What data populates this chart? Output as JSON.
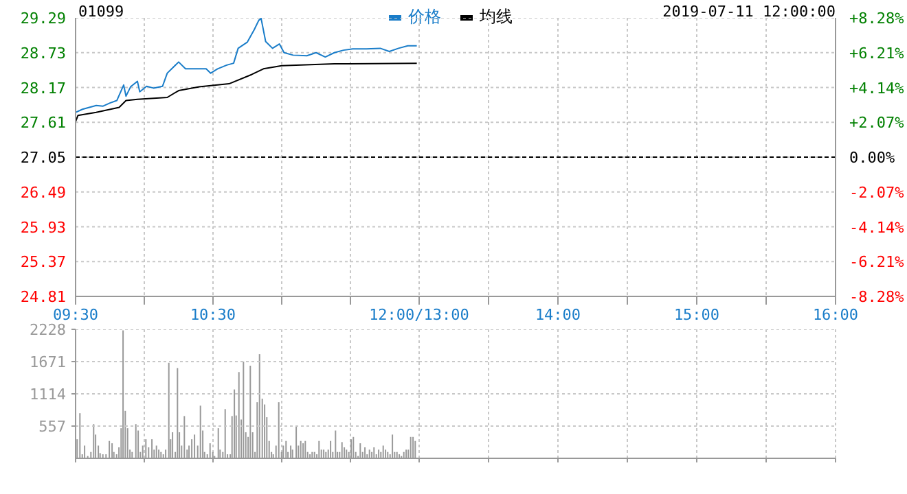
{
  "chart_data": [
    {
      "type": "line",
      "title": "01099",
      "annotations": [
        "2019-07-11 12:00:00"
      ],
      "series": [
        {
          "name": "价格",
          "color": "#1a7dc9",
          "x": [
            9.5,
            9.55,
            9.6,
            9.65,
            9.7,
            9.75,
            9.8,
            9.85,
            9.867,
            9.9,
            9.95,
            9.967,
            10.017,
            10.067,
            10.133,
            10.167,
            10.25,
            10.3,
            10.367,
            10.45,
            10.483,
            10.533,
            10.6,
            10.65,
            10.683,
            10.75,
            10.8,
            10.833,
            10.85,
            10.883,
            10.933,
            10.983,
            11.017,
            11.083,
            11.183,
            11.25,
            11.317,
            11.383,
            11.45,
            11.517,
            11.617,
            11.717,
            11.783,
            11.85,
            11.917,
            11.983
          ],
          "values": [
            27.77,
            27.82,
            27.85,
            27.88,
            27.87,
            27.92,
            27.96,
            28.21,
            28.03,
            28.18,
            28.27,
            28.1,
            28.19,
            28.16,
            28.19,
            28.4,
            28.58,
            28.47,
            28.47,
            28.47,
            28.4,
            28.47,
            28.53,
            28.56,
            28.8,
            28.9,
            29.1,
            29.25,
            29.28,
            28.91,
            28.8,
            28.87,
            28.73,
            28.69,
            28.68,
            28.73,
            28.66,
            28.73,
            28.77,
            28.79,
            28.79,
            28.8,
            28.75,
            28.8,
            28.84,
            28.84
          ]
        },
        {
          "name": "均线",
          "color": "#000000",
          "x": [
            9.5,
            9.517,
            9.65,
            9.817,
            9.867,
            9.95,
            10.167,
            10.25,
            10.4,
            10.617,
            10.783,
            10.867,
            11,
            11.383,
            11.983
          ],
          "values": [
            27.62,
            27.72,
            27.77,
            27.85,
            27.96,
            27.98,
            28.01,
            28.12,
            28.18,
            28.23,
            28.38,
            28.47,
            28.52,
            28.55,
            28.56
          ]
        }
      ],
      "xlim": [
        9.5,
        12
      ],
      "xticks": [
        {
          "value": 9.5,
          "label": "09:30"
        },
        {
          "value": 10,
          "label": null
        },
        {
          "value": 10.5,
          "label": "10:30"
        },
        {
          "value": 11,
          "label": null
        },
        {
          "value": 11.5,
          "label": null
        },
        {
          "value": 12,
          "label": "12:00/13:00"
        }
      ],
      "ylim": [
        24.81,
        29.29
      ],
      "yticks": [
        24.81,
        25.37,
        25.93,
        26.49,
        27.05,
        27.61,
        28.17,
        28.73,
        29.29
      ],
      "ref_lines": [
        {
          "axis": "y",
          "value": 27.05,
          "color": "#000000",
          "line_style": "dashed"
        }
      ],
      "grid": true,
      "legend": "top",
      "marker": "none",
      "line_style": "solid"
    },
    {
      "type": "line",
      "xlim": [
        13,
        16
      ],
      "xticks": [
        {
          "value": 13,
          "label": null
        },
        {
          "value": 13.5,
          "label": null
        },
        {
          "value": 14,
          "label": "14:00"
        },
        {
          "value": 14.5,
          "label": null
        },
        {
          "value": 15,
          "label": "15:00"
        },
        {
          "value": 15.5,
          "label": null
        },
        {
          "value": 16,
          "label": "16:00"
        }
      ],
      "ylim": [
        24.81,
        29.29
      ],
      "yticks": [
        24.81,
        25.37,
        25.93,
        26.49,
        27.05,
        27.61,
        28.17,
        28.73,
        29.29
      ],
      "y2lim": [
        -8.28,
        8.28
      ],
      "y2ticks": [
        {
          "value": -8.28,
          "label": "-8.28%"
        },
        {
          "value": -6.21,
          "label": "-6.21%"
        },
        {
          "value": -4.14,
          "label": "-4.14%"
        },
        {
          "value": -2.07,
          "label": "-2.07%"
        },
        {
          "value": 0,
          "label": "0.00%"
        },
        {
          "value": 2.07,
          "label": "+2.07%"
        },
        {
          "value": 4.14,
          "label": "+4.14%"
        },
        {
          "value": 6.21,
          "label": "+6.21%"
        },
        {
          "value": 8.28,
          "label": "+8.28%"
        }
      ],
      "ref_lines": [
        {
          "axis": "y",
          "value": 27.05,
          "color": "#000000",
          "line_style": "dashed"
        }
      ],
      "grid": true,
      "tick_labels": "x"
    },
    {
      "type": "bar",
      "color": "#999999",
      "x": [
        9.513,
        9.533,
        9.55,
        9.567,
        9.59,
        9.613,
        9.633,
        9.647,
        9.667,
        9.68,
        9.7,
        9.723,
        9.747,
        9.767,
        9.78,
        9.8,
        9.817,
        9.833,
        9.847,
        9.863,
        9.88,
        9.897,
        9.913,
        9.94,
        9.957,
        9.973,
        9.99,
        10.013,
        10.033,
        10.057,
        10.073,
        10.09,
        10.107,
        10.123,
        10.14,
        10.157,
        10.18,
        10.193,
        10.207,
        10.227,
        10.243,
        10.257,
        10.273,
        10.293,
        10.313,
        10.327,
        10.347,
        10.367,
        10.39,
        10.41,
        10.427,
        10.44,
        10.46,
        10.48,
        10.5,
        10.513,
        10.54,
        10.553,
        10.573,
        10.59,
        10.607,
        10.627,
        10.64,
        10.657,
        10.67,
        10.69,
        10.707,
        10.723,
        10.74,
        10.757,
        10.773,
        10.79,
        10.807,
        10.823,
        10.84,
        10.86,
        10.877,
        10.893,
        10.91,
        10.927,
        10.94,
        10.96,
        10.98,
        11,
        11.013,
        11.033,
        11.047,
        11.067,
        11.08,
        11.107,
        11.123,
        11.14,
        11.157,
        11.173,
        11.19,
        11.207,
        11.223,
        11.24,
        11.257,
        11.273,
        11.29,
        11.307,
        11.323,
        11.34,
        11.357,
        11.373,
        11.393,
        11.407,
        11.423,
        11.44,
        11.457,
        11.473,
        11.49,
        11.507,
        11.523,
        11.54,
        11.557,
        11.573,
        11.59,
        11.607,
        11.623,
        11.64,
        11.657,
        11.673,
        11.69,
        11.707,
        11.723,
        11.74,
        11.757,
        11.773,
        11.79,
        11.807,
        11.823,
        11.84,
        11.857,
        11.873,
        11.89,
        11.907,
        11.923,
        11.94,
        11.957,
        11.973
      ],
      "values": [
        330,
        780,
        70,
        220,
        40,
        110,
        590,
        410,
        220,
        90,
        70,
        70,
        300,
        260,
        110,
        70,
        190,
        520,
        2210,
        820,
        520,
        150,
        110,
        590,
        480,
        110,
        220,
        330,
        190,
        330,
        150,
        220,
        150,
        110,
        70,
        150,
        1650,
        330,
        450,
        110,
        1560,
        450,
        220,
        730,
        150,
        220,
        330,
        410,
        220,
        910,
        480,
        110,
        70,
        260,
        110,
        40,
        520,
        150,
        110,
        850,
        70,
        70,
        730,
        1190,
        740,
        1490,
        670,
        1670,
        450,
        370,
        1600,
        450,
        110,
        970,
        1800,
        1030,
        930,
        710,
        300,
        110,
        70,
        220,
        970,
        110,
        220,
        300,
        110,
        220,
        150,
        560,
        220,
        300,
        260,
        300,
        110,
        70,
        110,
        110,
        70,
        300,
        150,
        150,
        110,
        150,
        300,
        110,
        480,
        110,
        110,
        280,
        190,
        150,
        110,
        330,
        370,
        110,
        40,
        260,
        110,
        190,
        70,
        150,
        110,
        190,
        70,
        150,
        110,
        220,
        150,
        110,
        70,
        410,
        110,
        110,
        70,
        40,
        110,
        150,
        150,
        370,
        370,
        300
      ],
      "xlim": [
        9.5,
        12
      ],
      "xticks": [
        {
          "value": 9.5,
          "label": null
        },
        {
          "value": 10,
          "label": null
        },
        {
          "value": 10.5,
          "label": null
        },
        {
          "value": 11,
          "label": null
        },
        {
          "value": 11.5,
          "label": null
        },
        {
          "value": 12,
          "label": null
        }
      ],
      "ylim": [
        0,
        2228
      ],
      "yticks": [
        557,
        1114,
        1671,
        2228
      ],
      "grid": true,
      "tick_labels": "y"
    },
    {
      "type": "bar",
      "xlim": [
        13,
        16
      ],
      "xticks": [
        {
          "value": 13.5,
          "label": null
        },
        {
          "value": 14,
          "label": null
        },
        {
          "value": 14.5,
          "label": null
        },
        {
          "value": 15,
          "label": null
        },
        {
          "value": 15.5,
          "label": null
        },
        {
          "value": 16,
          "label": null
        }
      ],
      "ylim": [
        0,
        2228
      ],
      "yticks": [
        {
          "value": 557,
          "label": null
        },
        {
          "value": 1114,
          "label": null
        },
        {
          "value": 1671,
          "label": null
        },
        {
          "value": 2228,
          "label": null
        }
      ],
      "grid": true,
      "tick_labels": false
    }
  ]
}
